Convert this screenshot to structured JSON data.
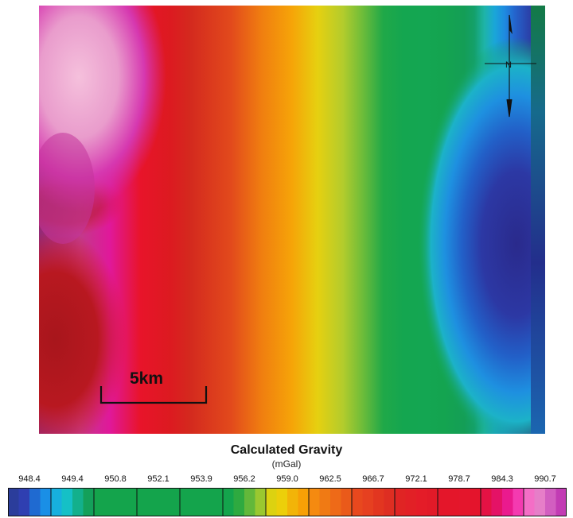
{
  "map": {
    "scale_bar_label": "5km",
    "north_label": "N",
    "gradient_colors": [
      "#8e2a7a",
      "#c23a8a",
      "#e0189a",
      "#e8142a",
      "#dc1a20",
      "#d42a1e",
      "#e24a1c",
      "#f07e10",
      "#f6a408",
      "#e6d010",
      "#b4cc2c",
      "#6cbc3a",
      "#20a848",
      "#14a650",
      "#14a652",
      "#14a450",
      "#149e56",
      "#14a06a",
      "#1eb4a8",
      "#1aa6d8",
      "#1e8ae0",
      "#2464cc",
      "#2b40a8",
      "#2a2c8c"
    ],
    "colors": {
      "pink_band": "#f3b6d8",
      "magenta": "#d430a8",
      "dark_red": "#a8161c",
      "deep_blue": "#2a2a8c",
      "blue_glow": "#24b0e0",
      "dark_green": "#137a46"
    }
  },
  "legend": {
    "title": "Calculated Gravity",
    "unit": "(mGal)",
    "tick_labels": [
      "948.4",
      "949.4",
      "950.8",
      "952.1",
      "953.9",
      "956.2",
      "959.0",
      "962.5",
      "966.7",
      "972.1",
      "978.7",
      "984.3",
      "990.7"
    ],
    "segment_colors": [
      [
        "#2b3d9b",
        "#2f3fb1",
        "#1f6ad1",
        "#1a8fe6"
      ],
      [
        "#17b0de",
        "#15c0c6",
        "#13b08c",
        "#14a05a"
      ],
      [
        "#14a44c",
        "#14a44c",
        "#14a44c",
        "#14a44c"
      ],
      [
        "#14a44c",
        "#14a44c",
        "#14a44c",
        "#14a44c"
      ],
      [
        "#14a44c",
        "#14a44c",
        "#14a44c",
        "#14a44c"
      ],
      [
        "#14a44c",
        "#2eaa40",
        "#62b83a",
        "#9ac830"
      ],
      [
        "#dcd210",
        "#eccf0a",
        "#f2b408",
        "#f7a006"
      ],
      [
        "#f58a10",
        "#f07a14",
        "#ee6a18",
        "#ea5a1a"
      ],
      [
        "#e8481e",
        "#e64020",
        "#e23620",
        "#de2e22"
      ],
      [
        "#e02424",
        "#e22026",
        "#e41c28",
        "#e21a28"
      ],
      [
        "#e4162a",
        "#e4162a",
        "#e4162c",
        "#e4142c"
      ],
      [
        "#e41244",
        "#e41266",
        "#ea1a8e",
        "#f43ab0"
      ],
      [
        "#f46ec6",
        "#e67ec8",
        "#d25ec0",
        "#c23cb4"
      ]
    ]
  }
}
